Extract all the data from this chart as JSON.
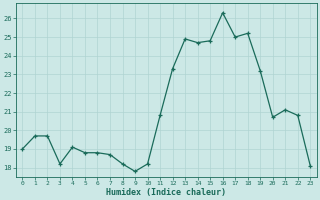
{
  "x": [
    0,
    1,
    2,
    3,
    4,
    5,
    6,
    7,
    8,
    9,
    10,
    11,
    12,
    13,
    14,
    15,
    16,
    17,
    18,
    19,
    20,
    21,
    22,
    23
  ],
  "y": [
    19.0,
    19.7,
    19.7,
    18.2,
    19.1,
    18.8,
    18.8,
    18.7,
    18.2,
    17.8,
    18.2,
    20.8,
    23.3,
    24.9,
    24.7,
    24.8,
    26.3,
    25.0,
    25.2,
    23.2,
    20.7,
    21.1,
    20.8,
    18.1
  ],
  "line_color": "#1a6b5a",
  "marker": "+",
  "marker_color": "#1a6b5a",
  "bg_color": "#cce8e6",
  "grid_color": "#b0d4d2",
  "axis_color": "#1a6b5a",
  "tick_color": "#1a6b5a",
  "xlabel": "Humidex (Indice chaleur)",
  "xlabel_color": "#1a6b5a",
  "ylim": [
    17.5,
    26.8
  ],
  "yticks": [
    18,
    19,
    20,
    21,
    22,
    23,
    24,
    25,
    26
  ],
  "xticks": [
    0,
    1,
    2,
    3,
    4,
    5,
    6,
    7,
    8,
    9,
    10,
    11,
    12,
    13,
    14,
    15,
    16,
    17,
    18,
    19,
    20,
    21,
    22,
    23
  ]
}
